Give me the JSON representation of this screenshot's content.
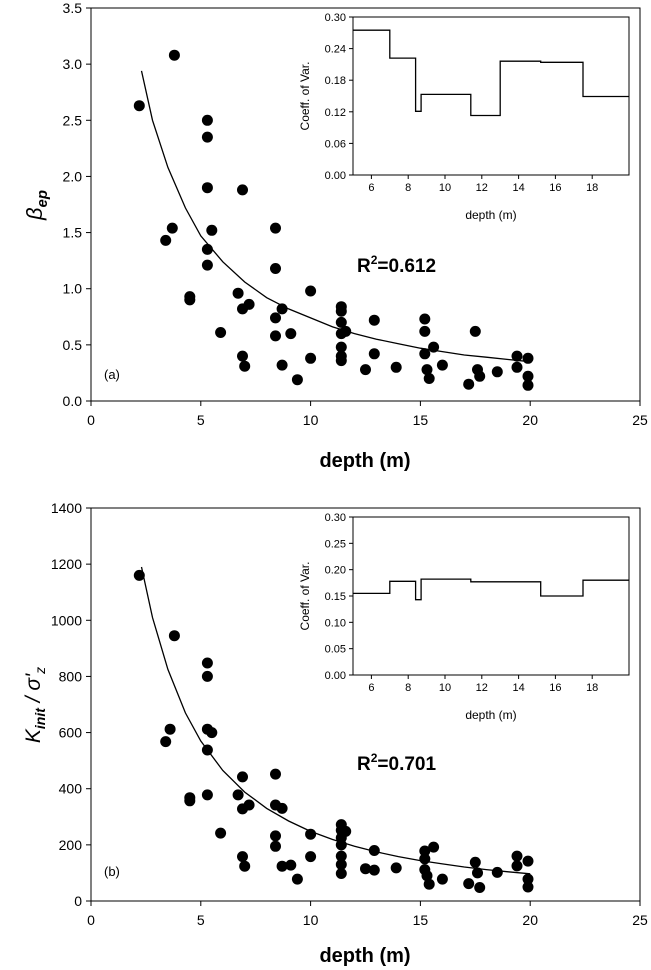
{
  "chart_data": [
    {
      "panel_label": "(a)",
      "type": "scatter",
      "xlabel": "depth (m)",
      "ylabel_main": "β",
      "ylabel_sub": "ep",
      "xlim": [
        0,
        25
      ],
      "ylim": [
        0,
        3.5
      ],
      "xticks": [
        0,
        5,
        10,
        15,
        20,
        25
      ],
      "yticks": [
        0,
        0.5,
        1,
        1.5,
        2,
        2.5,
        3,
        3.5
      ],
      "ytick_labels": [
        "0.0",
        "0.5",
        "1.0",
        "1.5",
        "2.0",
        "2.5",
        "3.0",
        "3.5"
      ],
      "annotation": {
        "text": "R",
        "sup": "2",
        "value": "=0.612"
      },
      "fit": [
        [
          2.3,
          2.94
        ],
        [
          2.8,
          2.5
        ],
        [
          3.5,
          2.08
        ],
        [
          4.3,
          1.72
        ],
        [
          5.0,
          1.47
        ],
        [
          6.0,
          1.24
        ],
        [
          7.0,
          1.06
        ],
        [
          8.0,
          0.92
        ],
        [
          9.0,
          0.82
        ],
        [
          10.0,
          0.74
        ],
        [
          11.0,
          0.66
        ],
        [
          12.0,
          0.6
        ],
        [
          13.0,
          0.55
        ],
        [
          14.0,
          0.51
        ],
        [
          15.0,
          0.47
        ],
        [
          16.0,
          0.44
        ],
        [
          17.0,
          0.41
        ],
        [
          18.0,
          0.39
        ],
        [
          19.0,
          0.37
        ],
        [
          20.0,
          0.35
        ]
      ],
      "points": [
        [
          2.2,
          2.63
        ],
        [
          3.4,
          1.43
        ],
        [
          3.7,
          1.54
        ],
        [
          3.8,
          3.08
        ],
        [
          4.5,
          0.93
        ],
        [
          4.5,
          0.9
        ],
        [
          5.3,
          2.5
        ],
        [
          5.3,
          2.35
        ],
        [
          5.3,
          1.9
        ],
        [
          5.3,
          1.35
        ],
        [
          5.3,
          1.21
        ],
        [
          5.5,
          1.52
        ],
        [
          5.9,
          0.61
        ],
        [
          6.7,
          0.96
        ],
        [
          6.9,
          1.88
        ],
        [
          6.9,
          0.82
        ],
        [
          6.9,
          0.4
        ],
        [
          7.0,
          0.31
        ],
        [
          7.2,
          0.86
        ],
        [
          8.4,
          1.54
        ],
        [
          8.4,
          1.18
        ],
        [
          8.4,
          0.74
        ],
        [
          8.4,
          0.58
        ],
        [
          8.7,
          0.82
        ],
        [
          8.7,
          0.32
        ],
        [
          9.1,
          0.6
        ],
        [
          9.4,
          0.19
        ],
        [
          10.0,
          0.98
        ],
        [
          10.0,
          0.38
        ],
        [
          11.4,
          0.84
        ],
        [
          11.4,
          0.8
        ],
        [
          11.4,
          0.7
        ],
        [
          11.4,
          0.6
        ],
        [
          11.4,
          0.48
        ],
        [
          11.4,
          0.4
        ],
        [
          11.4,
          0.36
        ],
        [
          11.6,
          0.62
        ],
        [
          12.5,
          0.28
        ],
        [
          12.9,
          0.72
        ],
        [
          12.9,
          0.42
        ],
        [
          13.9,
          0.3
        ],
        [
          15.2,
          0.73
        ],
        [
          15.2,
          0.62
        ],
        [
          15.2,
          0.42
        ],
        [
          15.3,
          0.28
        ],
        [
          15.4,
          0.2
        ],
        [
          15.6,
          0.48
        ],
        [
          16.0,
          0.32
        ],
        [
          17.2,
          0.15
        ],
        [
          17.5,
          0.62
        ],
        [
          17.6,
          0.28
        ],
        [
          17.7,
          0.22
        ],
        [
          18.5,
          0.26
        ],
        [
          19.4,
          0.4
        ],
        [
          19.4,
          0.3
        ],
        [
          19.9,
          0.38
        ],
        [
          19.9,
          0.22
        ],
        [
          19.9,
          0.14
        ]
      ],
      "inset": {
        "xlabel": "depth (m)",
        "ylabel": "Coeff. of Var.",
        "xlim": [
          5,
          20
        ],
        "ylim": [
          0,
          0.3
        ],
        "xticks": [
          6,
          8,
          10,
          12,
          14,
          16,
          18
        ],
        "yticks": [
          0,
          0.06,
          0.12,
          0.18,
          0.24,
          0.3
        ],
        "ytick_labels": [
          "0.00",
          "0.06",
          "0.12",
          "0.18",
          "0.24",
          "0.30"
        ],
        "step": [
          [
            5.0,
            0.275
          ],
          [
            7.0,
            0.275
          ],
          [
            7.0,
            0.222
          ],
          [
            8.4,
            0.222
          ],
          [
            8.4,
            0.121
          ],
          [
            8.7,
            0.121
          ],
          [
            8.7,
            0.153
          ],
          [
            11.4,
            0.153
          ],
          [
            11.4,
            0.113
          ],
          [
            13.0,
            0.113
          ],
          [
            13.0,
            0.216
          ],
          [
            15.2,
            0.216
          ],
          [
            15.2,
            0.214
          ],
          [
            17.5,
            0.214
          ],
          [
            17.5,
            0.149
          ],
          [
            20.0,
            0.149
          ]
        ]
      }
    },
    {
      "panel_label": "(b)",
      "type": "scatter",
      "xlabel": "depth (m)",
      "ylabel_main": "K",
      "ylabel_sub": "init",
      "ylabel_rest": " / σ'",
      "ylabel_sub2": "z",
      "xlim": [
        0,
        25
      ],
      "ylim": [
        0,
        1400
      ],
      "xticks": [
        0,
        5,
        10,
        15,
        20,
        25
      ],
      "yticks": [
        0,
        200,
        400,
        600,
        800,
        1000,
        1200,
        1400
      ],
      "ytick_labels": [
        "0",
        "200",
        "400",
        "600",
        "800",
        "1000",
        "1200",
        "1400"
      ],
      "annotation": {
        "text": "R",
        "sup": "2",
        "value": "=0.701"
      },
      "fit": [
        [
          2.3,
          1190
        ],
        [
          2.8,
          1010
        ],
        [
          3.5,
          825
        ],
        [
          4.3,
          670
        ],
        [
          5.0,
          570
        ],
        [
          6.0,
          465
        ],
        [
          7.0,
          388
        ],
        [
          8.0,
          330
        ],
        [
          9.0,
          285
        ],
        [
          10.0,
          248
        ],
        [
          11.0,
          219
        ],
        [
          12.0,
          195
        ],
        [
          13.0,
          175
        ],
        [
          14.0,
          158
        ],
        [
          15.0,
          144
        ],
        [
          16.0,
          132
        ],
        [
          17.0,
          121
        ],
        [
          18.0,
          112
        ],
        [
          19.0,
          104
        ],
        [
          20.0,
          97
        ]
      ],
      "points": [
        [
          2.2,
          1160
        ],
        [
          3.4,
          568
        ],
        [
          3.6,
          612
        ],
        [
          3.8,
          945
        ],
        [
          4.5,
          368
        ],
        [
          4.5,
          357
        ],
        [
          5.3,
          848
        ],
        [
          5.3,
          800
        ],
        [
          5.3,
          612
        ],
        [
          5.3,
          538
        ],
        [
          5.3,
          378
        ],
        [
          5.5,
          600
        ],
        [
          5.9,
          242
        ],
        [
          6.7,
          378
        ],
        [
          6.9,
          442
        ],
        [
          6.9,
          328
        ],
        [
          6.9,
          158
        ],
        [
          7.0,
          124
        ],
        [
          7.2,
          342
        ],
        [
          8.4,
          452
        ],
        [
          8.4,
          342
        ],
        [
          8.4,
          232
        ],
        [
          8.4,
          195
        ],
        [
          8.7,
          330
        ],
        [
          8.7,
          124
        ],
        [
          9.1,
          128
        ],
        [
          9.4,
          78
        ],
        [
          10.0,
          238
        ],
        [
          10.0,
          158
        ],
        [
          11.4,
          272
        ],
        [
          11.4,
          252
        ],
        [
          11.4,
          225
        ],
        [
          11.4,
          200
        ],
        [
          11.4,
          160
        ],
        [
          11.4,
          130
        ],
        [
          11.4,
          98
        ],
        [
          11.6,
          248
        ],
        [
          12.5,
          115
        ],
        [
          12.9,
          180
        ],
        [
          12.9,
          110
        ],
        [
          13.9,
          118
        ],
        [
          15.2,
          178
        ],
        [
          15.2,
          150
        ],
        [
          15.2,
          112
        ],
        [
          15.3,
          90
        ],
        [
          15.4,
          60
        ],
        [
          15.6,
          192
        ],
        [
          16.0,
          78
        ],
        [
          17.2,
          62
        ],
        [
          17.5,
          138
        ],
        [
          17.6,
          100
        ],
        [
          17.7,
          48
        ],
        [
          18.5,
          102
        ],
        [
          19.4,
          160
        ],
        [
          19.4,
          125
        ],
        [
          19.9,
          142
        ],
        [
          19.9,
          78
        ],
        [
          19.9,
          50
        ]
      ],
      "inset": {
        "xlabel": "depth (m)",
        "ylabel": "Coeff. of Var.",
        "xlim": [
          5,
          20
        ],
        "ylim": [
          0,
          0.3
        ],
        "xticks": [
          6,
          8,
          10,
          12,
          14,
          16,
          18
        ],
        "yticks": [
          0,
          0.05,
          0.1,
          0.15,
          0.2,
          0.25,
          0.3
        ],
        "ytick_labels": [
          "0.00",
          "0.05",
          "0.10",
          "0.15",
          "0.20",
          "0.25",
          "0.30"
        ],
        "step": [
          [
            5.0,
            0.155
          ],
          [
            7.0,
            0.155
          ],
          [
            7.0,
            0.178
          ],
          [
            8.4,
            0.178
          ],
          [
            8.4,
            0.143
          ],
          [
            8.7,
            0.143
          ],
          [
            8.7,
            0.182
          ],
          [
            11.4,
            0.182
          ],
          [
            11.4,
            0.177
          ],
          [
            15.2,
            0.177
          ],
          [
            15.2,
            0.15
          ],
          [
            17.5,
            0.15
          ],
          [
            17.5,
            0.18
          ],
          [
            20.0,
            0.18
          ]
        ]
      }
    }
  ]
}
